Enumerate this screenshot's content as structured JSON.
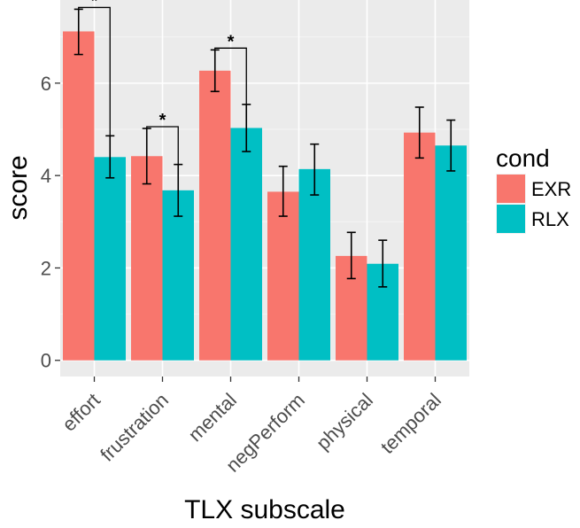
{
  "chart_data": {
    "type": "bar",
    "xlabel": "TLX subscale",
    "ylabel": "score",
    "ylim": [
      -0.35,
      7.8
    ],
    "yticks": [
      0,
      2,
      4,
      6
    ],
    "grid": true,
    "legend": {
      "title": "cond",
      "placement": "right"
    },
    "categories": [
      "effort",
      "frustration",
      "mental",
      "negPerform",
      "physical",
      "temporal"
    ],
    "series": [
      {
        "name": "EXR",
        "color": "#F8766D",
        "values": [
          7.12,
          4.42,
          6.27,
          3.65,
          2.26,
          4.93
        ],
        "err_low": [
          6.62,
          3.82,
          5.82,
          3.12,
          1.77,
          4.38
        ],
        "err_high": [
          7.6,
          5.02,
          6.72,
          4.2,
          2.77,
          5.48
        ]
      },
      {
        "name": "RLX",
        "color": "#00BFC4",
        "values": [
          4.4,
          3.68,
          5.03,
          4.14,
          2.09,
          4.65
        ],
        "err_low": [
          3.95,
          3.12,
          4.52,
          3.58,
          1.59,
          4.1
        ],
        "err_high": [
          4.86,
          4.24,
          5.54,
          4.68,
          2.6,
          5.2
        ]
      }
    ],
    "significance": [
      {
        "category_index": 0,
        "label": "*"
      },
      {
        "category_index": 1,
        "label": "*"
      },
      {
        "category_index": 2,
        "label": "*"
      }
    ]
  }
}
